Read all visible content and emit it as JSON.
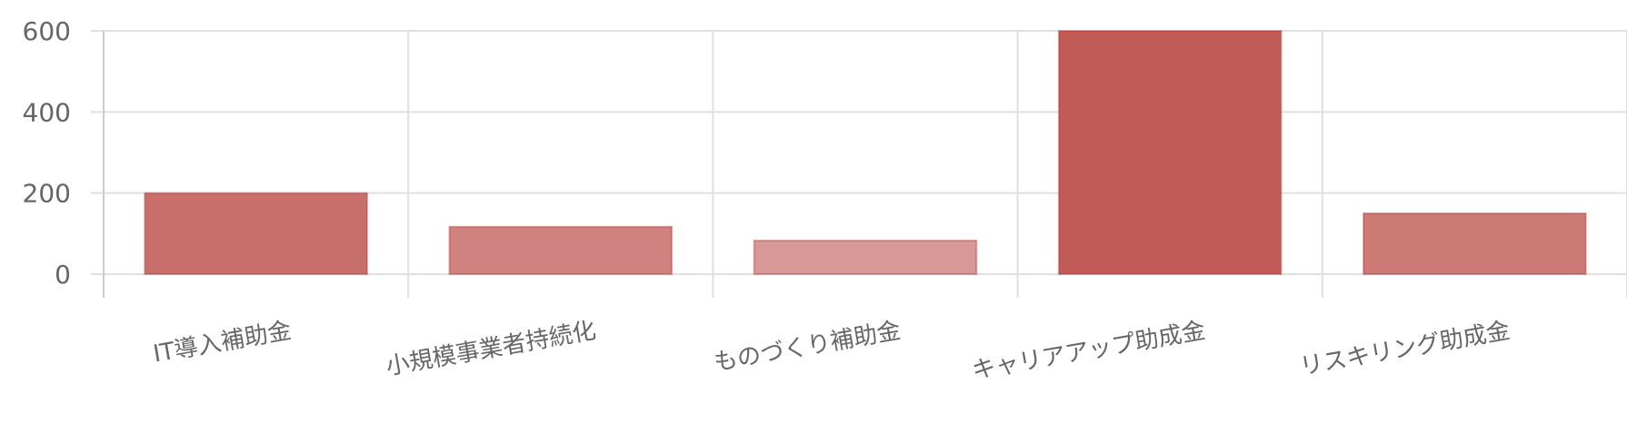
{
  "chart_data": {
    "type": "bar",
    "categories": [
      "IT導入補助金",
      "小規模事業者持続化",
      "ものづくり補助金",
      "キャリアアップ助成金",
      "リスキリング助成金"
    ],
    "values": [
      200,
      117,
      83,
      600,
      150
    ],
    "colors": [
      "#c96f6b",
      "#d08280",
      "#d89896",
      "#c05b58",
      "#cd7975"
    ],
    "yticks": [
      0,
      200,
      400,
      600
    ],
    "ylim": [
      0,
      600
    ],
    "grid": true,
    "legend": "none"
  }
}
